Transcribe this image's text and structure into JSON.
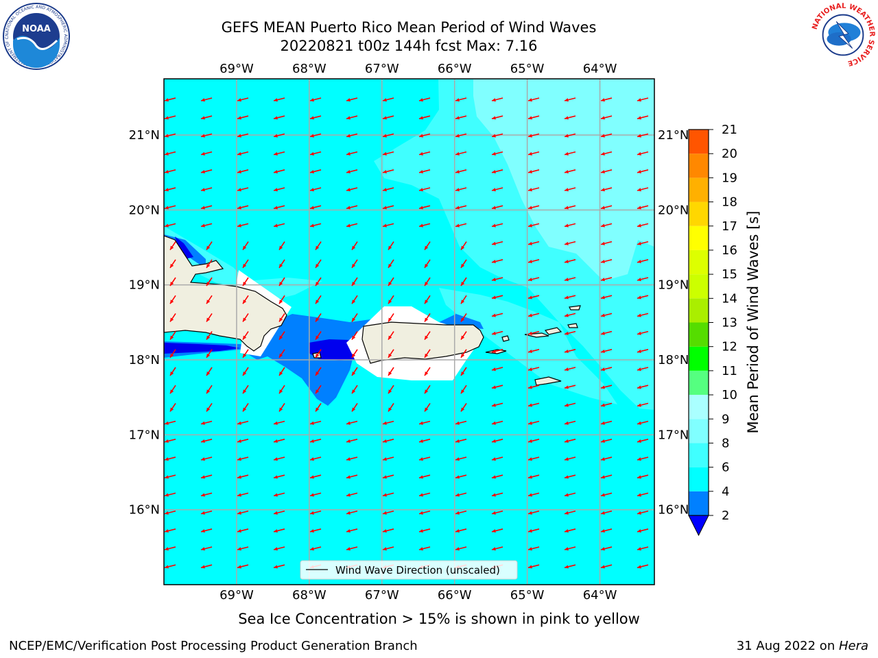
{
  "header": {
    "title_line1": "GEFS MEAN Puerto Rico Mean Period of Wind Waves",
    "title_line2": "20220821 t00z 144h fcst   Max: 7.16"
  },
  "logos": {
    "left_logo_text": "NOAA",
    "left_logo_ring": "NATIONAL OCEANIC AND ATMOSPHERIC ADMINISTRATION · U.S. DEPARTMENT OF COMMERCE",
    "right_logo_ring": "NATIONAL WEATHER SERVICE"
  },
  "map": {
    "lon_labels": [
      "69°W",
      "68°W",
      "67°W",
      "66°W",
      "65°W",
      "64°W"
    ],
    "lat_labels": [
      "21°N",
      "20°N",
      "19°N",
      "18°N",
      "17°N",
      "16°N"
    ],
    "legend_label": "Wind Wave Direction (unscaled)",
    "extent": {
      "lon_min": -70.0,
      "lon_max": -63.25,
      "lat_min": 15.0,
      "lat_max": 21.75
    }
  },
  "colorbar": {
    "title": "Mean Period of Wind Waves [s]",
    "ticks": [
      "2",
      "4",
      "6",
      "8",
      "9",
      "10",
      "11",
      "12",
      "13",
      "14",
      "15",
      "16",
      "17",
      "18",
      "19",
      "20",
      "21"
    ],
    "colors": [
      "#0080ff",
      "#00ffff",
      "#40ffff",
      "#80ffff",
      "#aaffff",
      "#55ff80",
      "#00ff00",
      "#55dd00",
      "#aaee00",
      "#ccff00",
      "#ddff00",
      "#ffff00",
      "#ffd700",
      "#ffb000",
      "#ff8800",
      "#ff5500",
      "#ff2a00",
      "#ff0000"
    ],
    "extend_color": "#0000ff"
  },
  "colors": {
    "ocean_main": "#00ffff",
    "ocean_light": "#40ffff",
    "ocean_lighter": "#80ffff",
    "wave_short": "#0080ff",
    "wave_shortest": "#0000ee",
    "land": "#f0efe0",
    "arrow": "#ff0000"
  },
  "footer": {
    "note": "Sea Ice Concentration > 15% is shown in pink to yellow",
    "left": "NCEP/EMC/Verification Post Processing Product Generation Branch",
    "right_date": "31 Aug 2022 on ",
    "right_host": "Hera"
  }
}
